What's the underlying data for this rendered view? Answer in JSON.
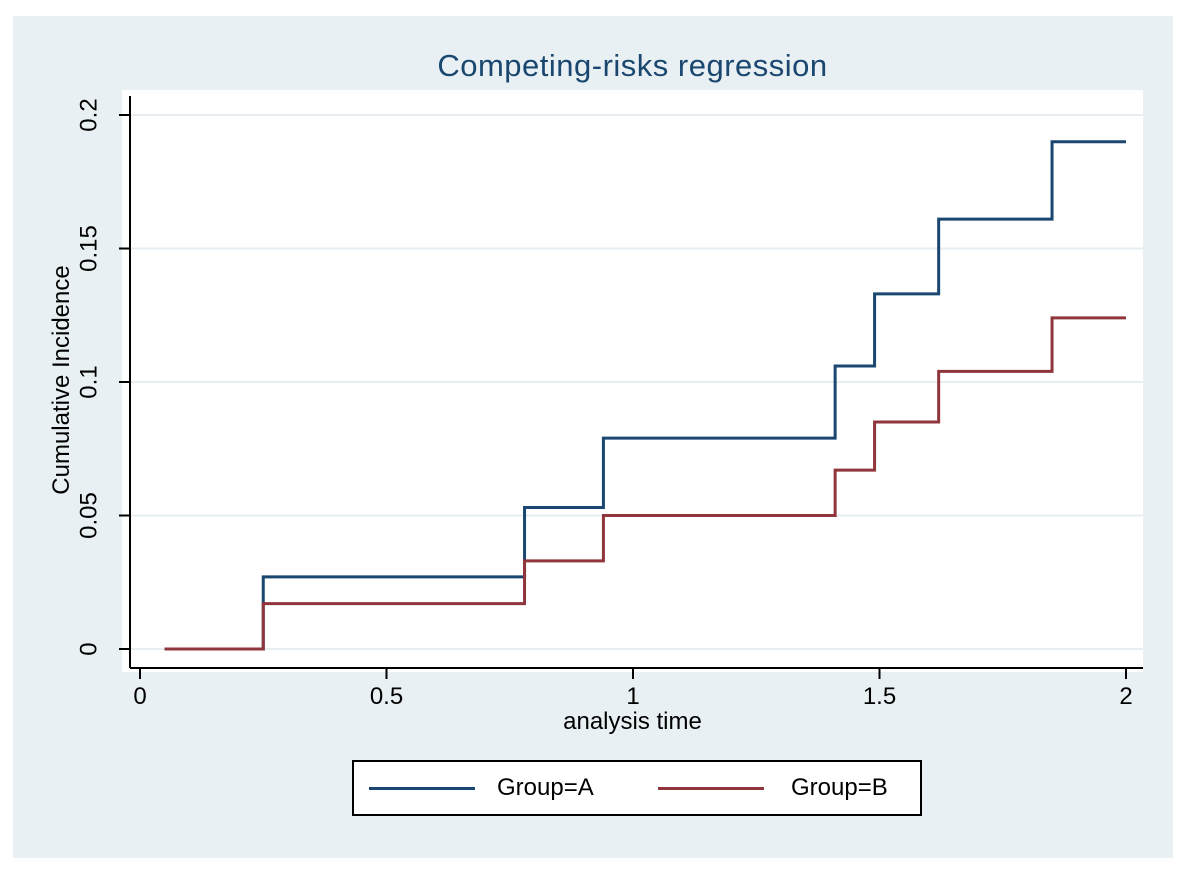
{
  "figure": {
    "background_color": "#e9f0f3",
    "plot_background_color": "#ffffff",
    "title_color": "#1a476f",
    "gridline_color": "#e7eef1",
    "axis_color": "#000000"
  },
  "chart_data": {
    "type": "line",
    "subtype": "step",
    "title": "Competing-risks regression",
    "xlabel": "analysis time",
    "ylabel": "Cumulative Incidence",
    "xlim": [
      0,
      2
    ],
    "ylim": [
      0,
      0.2
    ],
    "grid": "horizontal gridlines on",
    "legend_position": "bottom",
    "x_ticks": [
      {
        "value": 0,
        "label": "0"
      },
      {
        "value": 0.5,
        "label": "0.5"
      },
      {
        "value": 1,
        "label": "1"
      },
      {
        "value": 1.5,
        "label": "1.5"
      },
      {
        "value": 2,
        "label": "2"
      }
    ],
    "y_ticks": [
      {
        "value": 0,
        "label": "0"
      },
      {
        "value": 0.05,
        "label": "0.05"
      },
      {
        "value": 0.1,
        "label": "0.1"
      },
      {
        "value": 0.15,
        "label": "0.15"
      },
      {
        "value": 0.2,
        "label": "0.2"
      }
    ],
    "series": [
      {
        "name": "Group=A",
        "color": "#1a476f",
        "points": [
          [
            0.05,
            0
          ],
          [
            0.25,
            0.027
          ],
          [
            0.78,
            0.053
          ],
          [
            0.94,
            0.079
          ],
          [
            1.41,
            0.106
          ],
          [
            1.49,
            0.133
          ],
          [
            1.62,
            0.161
          ],
          [
            1.85,
            0.19
          ],
          [
            2,
            0.19
          ]
        ]
      },
      {
        "name": "Group=B",
        "color": "#90353b",
        "points": [
          [
            0.05,
            0
          ],
          [
            0.25,
            0.017
          ],
          [
            0.78,
            0.033
          ],
          [
            0.94,
            0.05
          ],
          [
            1.41,
            0.067
          ],
          [
            1.49,
            0.085
          ],
          [
            1.62,
            0.104
          ],
          [
            1.85,
            0.124
          ],
          [
            2,
            0.124
          ]
        ]
      }
    ]
  }
}
